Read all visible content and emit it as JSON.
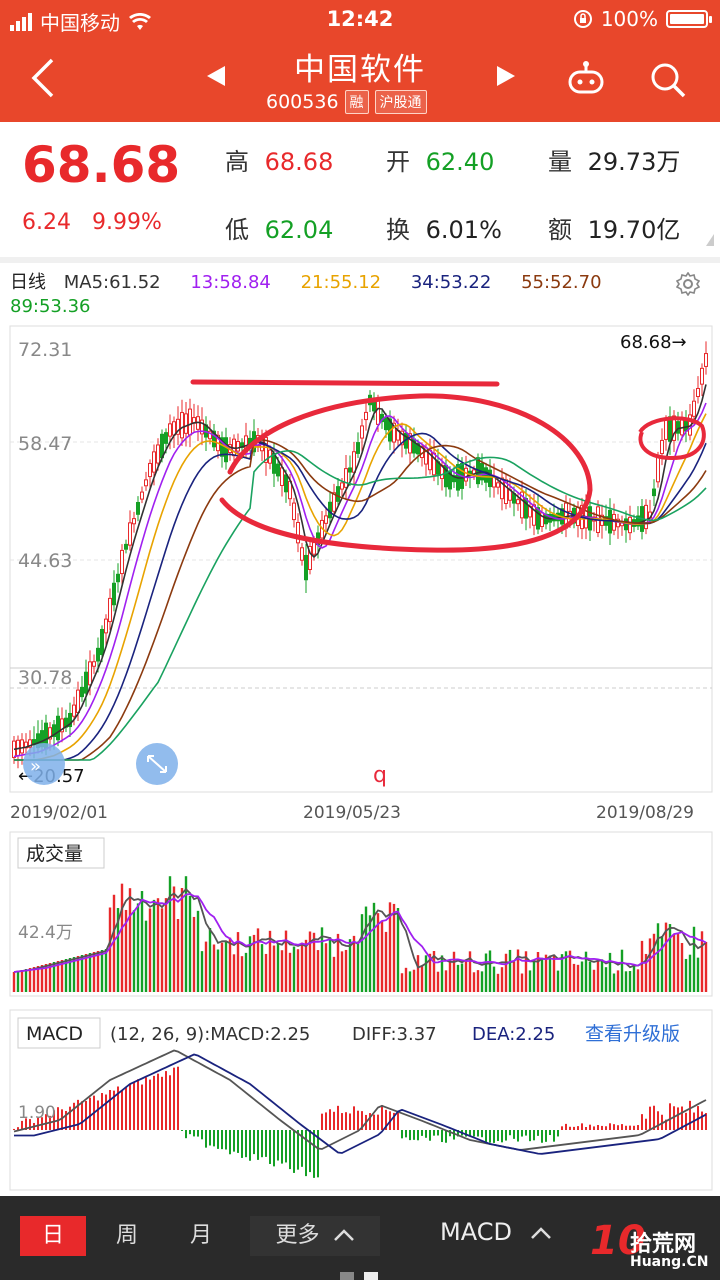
{
  "status": {
    "carrier": "中国移动",
    "time": "12:42",
    "battery": "100%"
  },
  "nav": {
    "title": "中国软件",
    "code": "600536",
    "tag1": "融",
    "tag2": "沪股通"
  },
  "quote": {
    "price": "68.68",
    "change": "6.24",
    "change_pct": "9.99%",
    "high_label": "高",
    "high": "68.68",
    "open_label": "开",
    "open": "62.40",
    "volume_label": "量",
    "volume": "29.73万",
    "low_label": "低",
    "low": "62.04",
    "turnover_label": "换",
    "turnover": "6.01%",
    "amount_label": "额",
    "amount": "19.70亿"
  },
  "ma": {
    "period": "日线",
    "ma5": "MA5:61.52",
    "ma13": "13:58.84",
    "ma21": "21:55.12",
    "ma34": "34:53.22",
    "ma55": "55:52.70",
    "ma89": "89:53.36"
  },
  "colors": {
    "ma5": "#333333",
    "ma13": "#a020f0",
    "ma21": "#e8a300",
    "ma34": "#1a237e",
    "ma55": "#8b3a0f",
    "ma89": "#1aa260",
    "red": "#e8292b",
    "green": "#14a025",
    "brand": "#e8472b"
  },
  "chart_data": {
    "type": "candlestick",
    "y_ticks": [
      "72.31",
      "58.47",
      "44.63",
      "30.78"
    ],
    "last_price_label": "68.68→",
    "low_label": "←20.57",
    "annotation": "q",
    "dates": [
      "2019/02/01",
      "2019/05/23",
      "2019/08/29"
    ],
    "ylim": [
      16.94,
      72.31
    ]
  },
  "volume": {
    "title": "成交量",
    "tick": "42.4万"
  },
  "macd": {
    "title": "MACD",
    "params": "(12, 26, 9):MACD:2.25",
    "diff": "DIFF:3.37",
    "dea": "DEA:2.25",
    "upgrade": "查看升级版",
    "tick": "1.90"
  },
  "bottom": {
    "day": "日",
    "week": "周",
    "month": "月",
    "more": "更多",
    "indicator": "MACD"
  },
  "watermark": {
    "logo": "10",
    "text": "拾荒网",
    "sub": "Huang.CN"
  }
}
